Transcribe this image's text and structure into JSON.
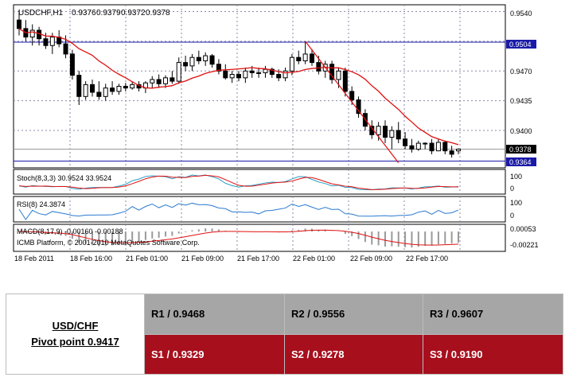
{
  "chart_data": {
    "type": "candlestick",
    "title": "USDCHF,H1",
    "ohlc_header": [
      "0.9376",
      "0.9379",
      "0.9372",
      "0.9378"
    ],
    "current_price": 0.9378,
    "current_price_label": "0.9378",
    "resistance_line": 0.9504,
    "resistance_label": "0.9504",
    "support_line": 0.9364,
    "support_label": "0.9364",
    "price_axis_ticks": [
      "0.9540",
      "0.9470",
      "0.9435",
      "0.9400"
    ],
    "ylim": [
      0.9356,
      0.9548
    ],
    "time_labels": [
      "18 Feb 2011",
      "18 Feb 16:00",
      "21 Feb 01:00",
      "21 Feb 09:00",
      "21 Feb 17:00",
      "22 Feb 01:00",
      "22 Feb 09:00",
      "22 Feb 17:00"
    ],
    "candles": [
      {
        "o": 0.953,
        "h": 0.9542,
        "l": 0.9512,
        "c": 0.952
      },
      {
        "o": 0.952,
        "h": 0.953,
        "l": 0.9505,
        "c": 0.951
      },
      {
        "o": 0.951,
        "h": 0.9525,
        "l": 0.95,
        "c": 0.9518
      },
      {
        "o": 0.9518,
        "h": 0.9522,
        "l": 0.95,
        "c": 0.9508
      },
      {
        "o": 0.9508,
        "h": 0.9515,
        "l": 0.9496,
        "c": 0.95
      },
      {
        "o": 0.95,
        "h": 0.9515,
        "l": 0.949,
        "c": 0.951
      },
      {
        "o": 0.951,
        "h": 0.9518,
        "l": 0.9498,
        "c": 0.9502
      },
      {
        "o": 0.9502,
        "h": 0.9512,
        "l": 0.9485,
        "c": 0.949
      },
      {
        "o": 0.949,
        "h": 0.9495,
        "l": 0.946,
        "c": 0.9465
      },
      {
        "o": 0.9465,
        "h": 0.947,
        "l": 0.943,
        "c": 0.944
      },
      {
        "o": 0.944,
        "h": 0.9458,
        "l": 0.9436,
        "c": 0.9454
      },
      {
        "o": 0.9454,
        "h": 0.946,
        "l": 0.944,
        "c": 0.9445
      },
      {
        "o": 0.9445,
        "h": 0.9458,
        "l": 0.9436,
        "c": 0.944
      },
      {
        "o": 0.944,
        "h": 0.9455,
        "l": 0.9435,
        "c": 0.945
      },
      {
        "o": 0.945,
        "h": 0.9458,
        "l": 0.9442,
        "c": 0.9446
      },
      {
        "o": 0.9446,
        "h": 0.9455,
        "l": 0.9442,
        "c": 0.9452
      },
      {
        "o": 0.9452,
        "h": 0.9456,
        "l": 0.9446,
        "c": 0.945
      },
      {
        "o": 0.945,
        "h": 0.9458,
        "l": 0.9448,
        "c": 0.9454
      },
      {
        "o": 0.9454,
        "h": 0.9458,
        "l": 0.9446,
        "c": 0.945
      },
      {
        "o": 0.945,
        "h": 0.9458,
        "l": 0.9444,
        "c": 0.9456
      },
      {
        "o": 0.9456,
        "h": 0.9464,
        "l": 0.945,
        "c": 0.946
      },
      {
        "o": 0.946,
        "h": 0.9466,
        "l": 0.945,
        "c": 0.9455
      },
      {
        "o": 0.9455,
        "h": 0.9465,
        "l": 0.945,
        "c": 0.9462
      },
      {
        "o": 0.9462,
        "h": 0.947,
        "l": 0.9455,
        "c": 0.9458
      },
      {
        "o": 0.9458,
        "h": 0.9486,
        "l": 0.9455,
        "c": 0.948
      },
      {
        "o": 0.948,
        "h": 0.9488,
        "l": 0.947,
        "c": 0.9476
      },
      {
        "o": 0.9476,
        "h": 0.949,
        "l": 0.947,
        "c": 0.9486
      },
      {
        "o": 0.9486,
        "h": 0.9494,
        "l": 0.9478,
        "c": 0.9482
      },
      {
        "o": 0.9482,
        "h": 0.9492,
        "l": 0.9476,
        "c": 0.9488
      },
      {
        "o": 0.9488,
        "h": 0.949,
        "l": 0.9474,
        "c": 0.9478
      },
      {
        "o": 0.9478,
        "h": 0.9484,
        "l": 0.9466,
        "c": 0.947
      },
      {
        "o": 0.947,
        "h": 0.9478,
        "l": 0.946,
        "c": 0.9462
      },
      {
        "o": 0.9462,
        "h": 0.947,
        "l": 0.9456,
        "c": 0.9466
      },
      {
        "o": 0.9466,
        "h": 0.947,
        "l": 0.9458,
        "c": 0.9462
      },
      {
        "o": 0.9462,
        "h": 0.9474,
        "l": 0.9456,
        "c": 0.947
      },
      {
        "o": 0.947,
        "h": 0.9476,
        "l": 0.9462,
        "c": 0.9468
      },
      {
        "o": 0.9468,
        "h": 0.9474,
        "l": 0.9462,
        "c": 0.9468
      },
      {
        "o": 0.9468,
        "h": 0.9476,
        "l": 0.9462,
        "c": 0.9472
      },
      {
        "o": 0.9472,
        "h": 0.9474,
        "l": 0.9462,
        "c": 0.9466
      },
      {
        "o": 0.9466,
        "h": 0.9472,
        "l": 0.9458,
        "c": 0.9462
      },
      {
        "o": 0.9462,
        "h": 0.9474,
        "l": 0.9458,
        "c": 0.947
      },
      {
        "o": 0.947,
        "h": 0.949,
        "l": 0.9465,
        "c": 0.9486
      },
      {
        "o": 0.9486,
        "h": 0.9494,
        "l": 0.9478,
        "c": 0.9482
      },
      {
        "o": 0.9482,
        "h": 0.9505,
        "l": 0.9478,
        "c": 0.949
      },
      {
        "o": 0.949,
        "h": 0.9496,
        "l": 0.9476,
        "c": 0.948
      },
      {
        "o": 0.948,
        "h": 0.9488,
        "l": 0.9466,
        "c": 0.947
      },
      {
        "o": 0.947,
        "h": 0.9482,
        "l": 0.9462,
        "c": 0.9478
      },
      {
        "o": 0.9478,
        "h": 0.9482,
        "l": 0.9455,
        "c": 0.946
      },
      {
        "o": 0.946,
        "h": 0.9474,
        "l": 0.945,
        "c": 0.947
      },
      {
        "o": 0.947,
        "h": 0.9474,
        "l": 0.944,
        "c": 0.9446
      },
      {
        "o": 0.9446,
        "h": 0.9452,
        "l": 0.943,
        "c": 0.9436
      },
      {
        "o": 0.9436,
        "h": 0.944,
        "l": 0.9415,
        "c": 0.942
      },
      {
        "o": 0.942,
        "h": 0.9425,
        "l": 0.94,
        "c": 0.9405
      },
      {
        "o": 0.9405,
        "h": 0.9412,
        "l": 0.939,
        "c": 0.9395
      },
      {
        "o": 0.9395,
        "h": 0.941,
        "l": 0.9388,
        "c": 0.9405
      },
      {
        "o": 0.9405,
        "h": 0.9412,
        "l": 0.9385,
        "c": 0.9392
      },
      {
        "o": 0.9392,
        "h": 0.9405,
        "l": 0.9378,
        "c": 0.94
      },
      {
        "o": 0.94,
        "h": 0.941,
        "l": 0.9385,
        "c": 0.939
      },
      {
        "o": 0.939,
        "h": 0.9398,
        "l": 0.9378,
        "c": 0.9382
      },
      {
        "o": 0.9382,
        "h": 0.939,
        "l": 0.9374,
        "c": 0.9378
      },
      {
        "o": 0.9378,
        "h": 0.9388,
        "l": 0.9376,
        "c": 0.9385
      },
      {
        "o": 0.9385,
        "h": 0.9386,
        "l": 0.9378,
        "c": 0.9385
      },
      {
        "o": 0.9385,
        "h": 0.939,
        "l": 0.9372,
        "c": 0.9376
      },
      {
        "o": 0.9376,
        "h": 0.939,
        "l": 0.9376,
        "c": 0.9386
      },
      {
        "o": 0.9386,
        "h": 0.9388,
        "l": 0.9372,
        "c": 0.9376
      },
      {
        "o": 0.9376,
        "h": 0.9382,
        "l": 0.9368,
        "c": 0.9372
      },
      {
        "o": 0.9376,
        "h": 0.9379,
        "l": 0.9372,
        "c": 0.9378
      }
    ],
    "stochastic": {
      "label": "Stoch(8,3,3) 30.9524 33.9524",
      "ticks": [
        "100",
        "0"
      ]
    },
    "rsi": {
      "label": "RSI(8) 24.3874",
      "ticks": [
        "100",
        "0"
      ]
    },
    "macd": {
      "label": "MACD(8,17,9) -0.00160 -0.00188",
      "ticks": [
        "0.00053",
        "-0.00221"
      ]
    },
    "copyright": "ICMB Platform, © 2001-2010 MetaQuotes Software Corp."
  },
  "pivot": {
    "pair": "USD/CHF",
    "pivot_point": "Pivot point 0.9417",
    "r1": "R1 / 0.9468",
    "r2": "R2 / 0.9556",
    "r3": "R3 / 0.9607",
    "s1": "S1 / 0.9329",
    "s2": "S2 / 0.9278",
    "s3": "S3 / 0.9190"
  }
}
